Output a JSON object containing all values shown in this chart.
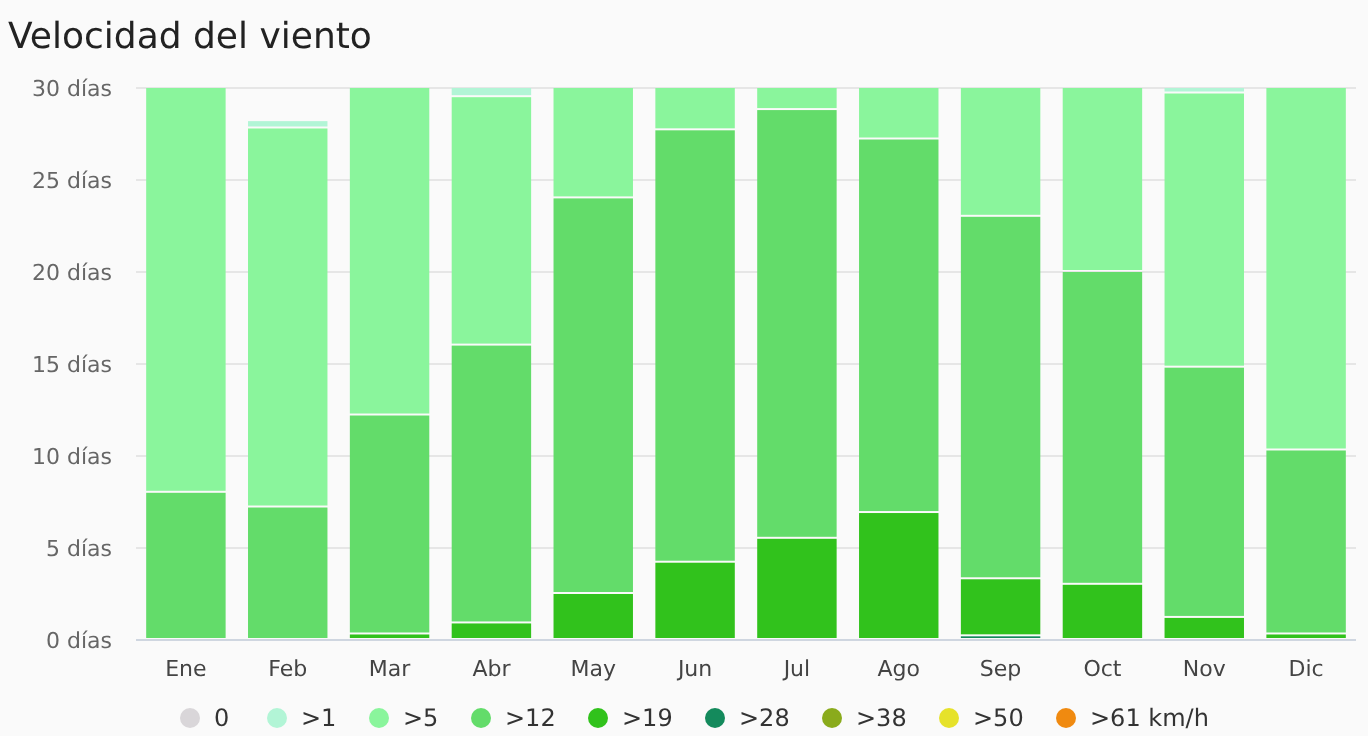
{
  "chart_data": {
    "type": "bar",
    "title": "Velocidad del viento",
    "stacked": true,
    "categories": [
      "Ene",
      "Feb",
      "Mar",
      "Abr",
      "May",
      "Jun",
      "Jul",
      "Ago",
      "Sep",
      "Oct",
      "Nov",
      "Dic"
    ],
    "series": [
      {
        "name": ">61 km/h",
        "color": "#f08a10",
        "values": [
          0,
          0,
          0,
          0,
          0,
          0,
          0,
          0,
          0,
          0,
          0,
          0
        ]
      },
      {
        "name": ">50",
        "color": "#e6e22a",
        "values": [
          0,
          0,
          0,
          0,
          0,
          0,
          0,
          0,
          0,
          0,
          0,
          0
        ]
      },
      {
        "name": ">38",
        "color": "#8aab1c",
        "values": [
          0,
          0,
          0,
          0,
          0,
          0,
          0,
          0,
          0,
          0,
          0,
          0
        ]
      },
      {
        "name": ">28",
        "color": "#148a5c",
        "values": [
          0,
          0,
          0,
          0,
          0,
          0,
          0,
          0,
          0.2,
          0,
          0,
          0
        ]
      },
      {
        "name": ">19",
        "color": "#31c21c",
        "values": [
          0,
          0,
          0.3,
          0.9,
          2.5,
          4.2,
          5.5,
          6.9,
          3.1,
          3.0,
          1.2,
          0.3
        ]
      },
      {
        "name": ">12",
        "color": "#63dc6a",
        "values": [
          8,
          7.2,
          11.9,
          15.1,
          21.5,
          23.5,
          23.3,
          20.3,
          19.7,
          17,
          13.6,
          10
        ]
      },
      {
        "name": ">5",
        "color": "#8af59c",
        "values": [
          22,
          20.6,
          17.8,
          13.5,
          6,
          2.3,
          1.2,
          2.8,
          7,
          10,
          14.9,
          19.7
        ]
      },
      {
        "name": ">1",
        "color": "#b2f5d6",
        "values": [
          0,
          0.4,
          0,
          0.5,
          0,
          0,
          0,
          0,
          0,
          0,
          0.3,
          0
        ]
      },
      {
        "name": "0",
        "color": "#d9d6d9",
        "values": [
          0,
          0,
          0,
          0,
          0,
          0,
          0,
          0,
          0,
          0,
          0,
          0
        ]
      }
    ],
    "ylim": [
      0,
      30
    ],
    "yticks": [
      {
        "value": 0,
        "label": "0 días"
      },
      {
        "value": 5,
        "label": "5 días"
      },
      {
        "value": 10,
        "label": "10 días"
      },
      {
        "value": 15,
        "label": "15 días"
      },
      {
        "value": 20,
        "label": "20 días"
      },
      {
        "value": 25,
        "label": "25 días"
      },
      {
        "value": 30,
        "label": "30 días"
      }
    ],
    "grid": "y",
    "legend": "bottom"
  }
}
